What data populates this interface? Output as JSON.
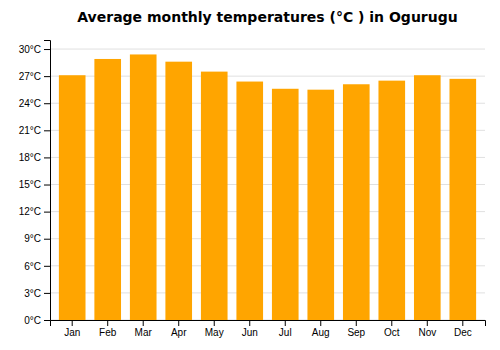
{
  "chart_data": {
    "type": "bar",
    "title": "Average monthly temperatures (°C ) in Ogurugu",
    "categories": [
      "Jan",
      "Feb",
      "Mar",
      "Apr",
      "May",
      "Jun",
      "Jul",
      "Aug",
      "Sep",
      "Oct",
      "Nov",
      "Dec"
    ],
    "values": [
      27.1,
      28.9,
      29.4,
      28.6,
      27.5,
      26.4,
      25.6,
      25.5,
      26.1,
      26.5,
      27.1,
      26.7
    ],
    "color": "#FFA500",
    "ylim": [
      0,
      31
    ],
    "yticks": [
      {
        "value": 0,
        "label": "0°C"
      },
      {
        "value": 3,
        "label": "3°C"
      },
      {
        "value": 6,
        "label": "6°C"
      },
      {
        "value": 9,
        "label": "9°C"
      },
      {
        "value": 12,
        "label": "12°C"
      },
      {
        "value": 15,
        "label": "15°C"
      },
      {
        "value": 18,
        "label": "18°C"
      },
      {
        "value": 21,
        "label": "21°C"
      },
      {
        "value": 24,
        "label": "24°C"
      },
      {
        "value": 27,
        "label": "27°C"
      },
      {
        "value": 30,
        "label": "30°C"
      }
    ],
    "grid": true
  }
}
